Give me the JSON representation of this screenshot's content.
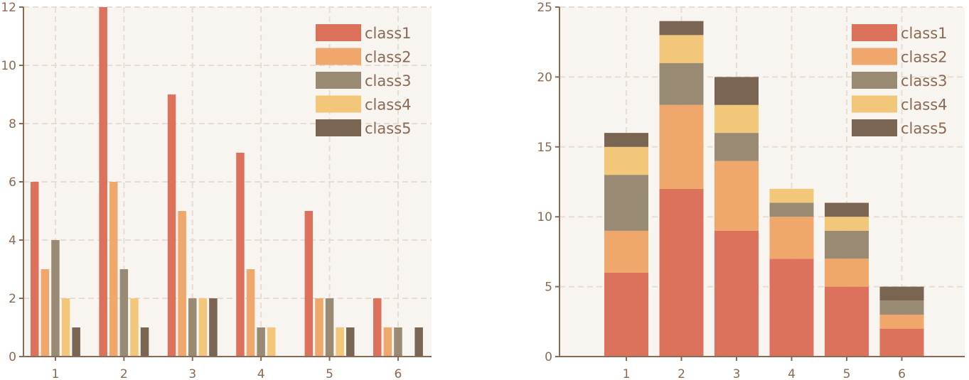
{
  "colors": {
    "panel_bg": "#f8f5f1",
    "axis": "#8a6a52",
    "grid": "#e6ddd3",
    "series": [
      "#dc725c",
      "#f0a76c",
      "#998a74",
      "#f2c77a",
      "#7a6452"
    ]
  },
  "chart_data": [
    {
      "type": "bar",
      "stacked": false,
      "categories": [
        "1",
        "2",
        "3",
        "4",
        "5",
        "6"
      ],
      "series": [
        {
          "name": "class1",
          "values": [
            6,
            12,
            9,
            7,
            5,
            2
          ]
        },
        {
          "name": "class2",
          "values": [
            3,
            6,
            5,
            3,
            2,
            1
          ]
        },
        {
          "name": "class3",
          "values": [
            4,
            3,
            2,
            1,
            2,
            1
          ]
        },
        {
          "name": "class4",
          "values": [
            2,
            2,
            2,
            1,
            1,
            0
          ]
        },
        {
          "name": "class5",
          "values": [
            1,
            1,
            2,
            0,
            1,
            1
          ]
        }
      ],
      "title": "",
      "xlabel": "",
      "ylabel": "",
      "ylim": [
        0,
        12
      ],
      "yticks": [
        "0",
        "2",
        "4",
        "6",
        "8",
        "10",
        "12"
      ],
      "grid": true,
      "legend": "top-right"
    },
    {
      "type": "bar",
      "stacked": true,
      "categories": [
        "1",
        "2",
        "3",
        "4",
        "5",
        "6"
      ],
      "series": [
        {
          "name": "class1",
          "values": [
            6,
            12,
            9,
            7,
            5,
            2
          ]
        },
        {
          "name": "class2",
          "values": [
            3,
            6,
            5,
            3,
            2,
            1
          ]
        },
        {
          "name": "class3",
          "values": [
            4,
            3,
            2,
            1,
            2,
            1
          ]
        },
        {
          "name": "class4",
          "values": [
            2,
            2,
            2,
            1,
            1,
            0
          ]
        },
        {
          "name": "class5",
          "values": [
            1,
            1,
            2,
            0,
            1,
            1
          ]
        }
      ],
      "title": "",
      "xlabel": "",
      "ylabel": "",
      "ylim": [
        0,
        25
      ],
      "yticks": [
        "0",
        "5",
        "10",
        "15",
        "20",
        "25"
      ],
      "grid": true,
      "legend": "top-right"
    }
  ]
}
